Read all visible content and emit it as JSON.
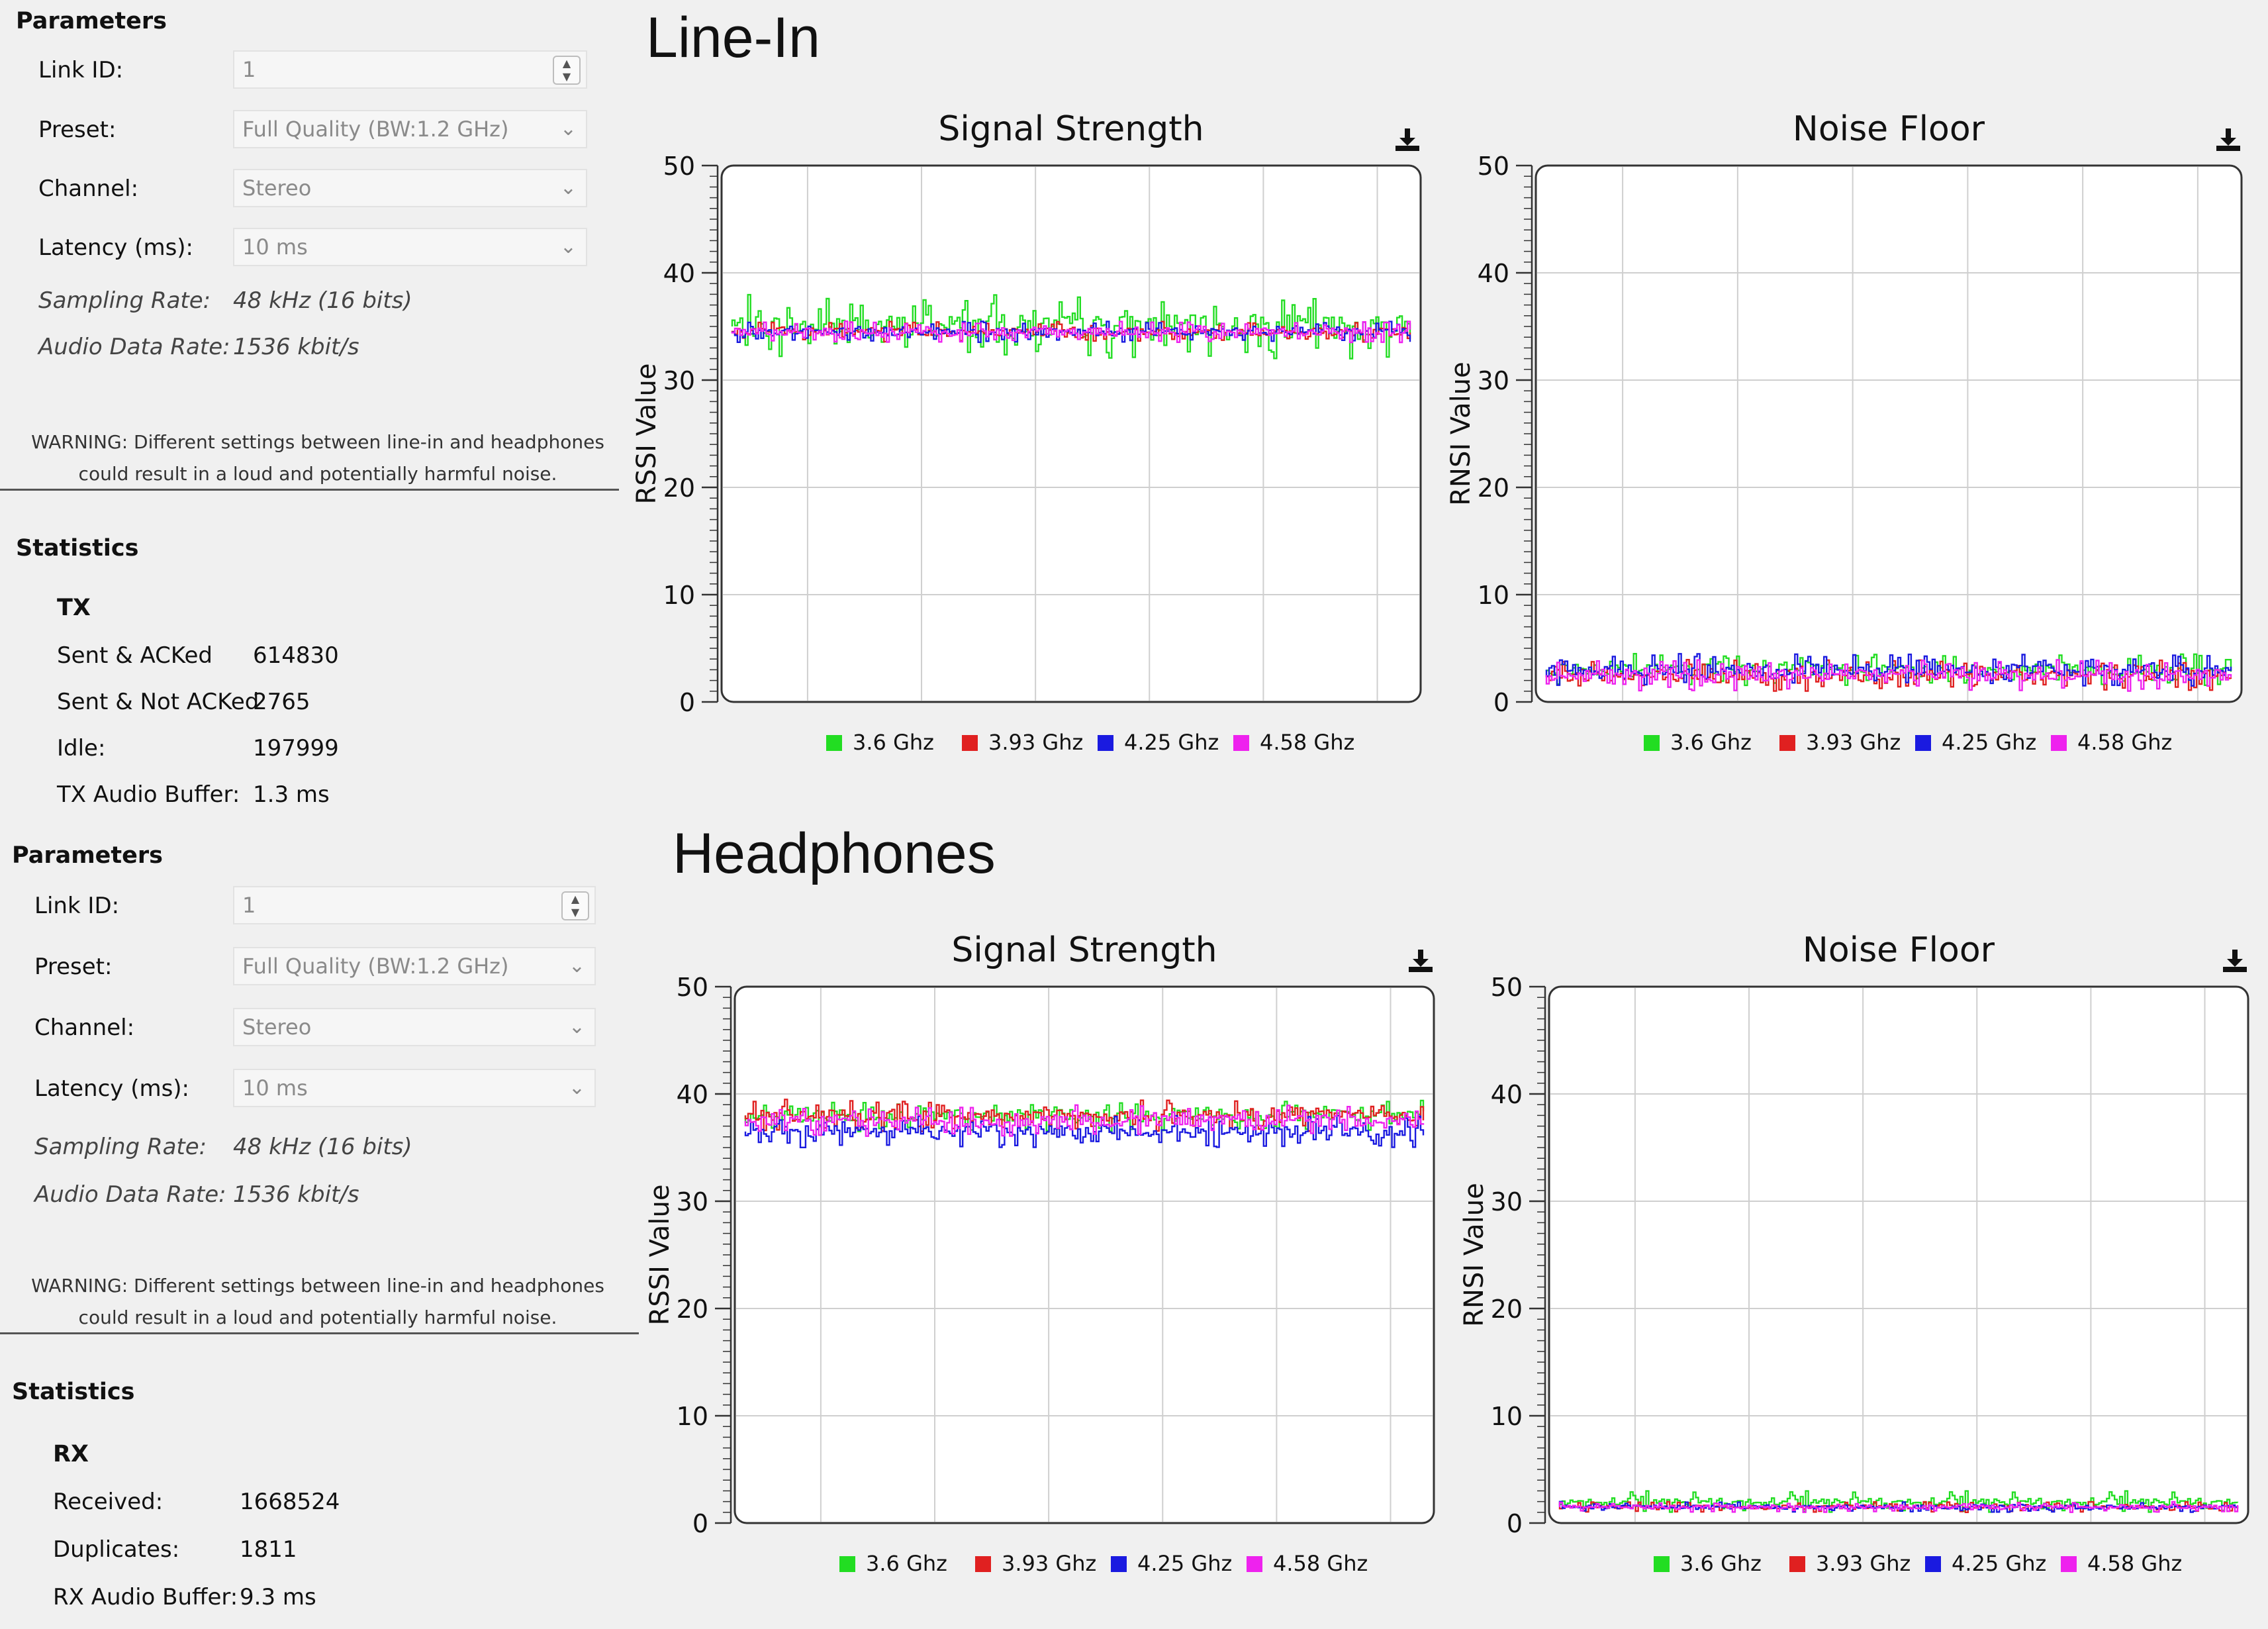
{
  "panels": [
    {
      "title": "Line-In",
      "parameters": {
        "header": "Parameters",
        "link_id_label": "Link ID:",
        "link_id_value": "1",
        "preset_label": "Preset:",
        "preset_value": "Full Quality (BW:1.2 GHz)",
        "channel_label": "Channel:",
        "channel_value": "Stereo",
        "latency_label": "Latency (ms):",
        "latency_value": "10 ms",
        "sampling_rate_label": "Sampling Rate:",
        "sampling_rate_value": "48 kHz  (16 bits)",
        "audio_rate_label": "Audio Data Rate:",
        "audio_rate_value": "1536 kbit/s",
        "warning_line1": "WARNING: Different settings between line-in and headphones",
        "warning_line2": "could result in a loud and potentially harmful noise."
      },
      "statistics": {
        "header": "Statistics",
        "group": "TX",
        "rows": [
          {
            "label": "Sent & ACKed",
            "value": "614830"
          },
          {
            "label": "Sent & Not ACKed",
            "value": "2765"
          },
          {
            "label": "Idle:",
            "value": "197999"
          },
          {
            "label": "TX Audio Buffer:",
            "value": "1.3 ms"
          }
        ]
      },
      "charts": [
        {
          "title": "Signal Strength",
          "ylabel": "RSSI Value"
        },
        {
          "title": "Noise Floor",
          "ylabel": "RNSI Value"
        }
      ]
    },
    {
      "title": "Headphones",
      "parameters": {
        "header": "Parameters",
        "link_id_label": "Link ID:",
        "link_id_value": "1",
        "preset_label": "Preset:",
        "preset_value": "Full Quality (BW:1.2 GHz)",
        "channel_label": "Channel:",
        "channel_value": "Stereo",
        "latency_label": "Latency (ms):",
        "latency_value": "10 ms",
        "sampling_rate_label": "Sampling Rate:",
        "sampling_rate_value": "48 kHz  (16 bits)",
        "audio_rate_label": "Audio Data Rate:",
        "audio_rate_value": "1536 kbit/s",
        "warning_line1": "WARNING: Different settings between line-in and headphones",
        "warning_line2": "could result in a loud and potentially harmful noise."
      },
      "statistics": {
        "header": "Statistics",
        "group": "RX",
        "rows": [
          {
            "label": "Received:",
            "value": "1668524"
          },
          {
            "label": "Duplicates:",
            "value": "1811"
          },
          {
            "label": "RX Audio Buffer:",
            "value": "9.3 ms"
          }
        ]
      },
      "charts": [
        {
          "title": "Signal Strength",
          "ylabel": "RSSI Value"
        },
        {
          "title": "Noise Floor",
          "ylabel": "RNSI Value"
        }
      ]
    }
  ],
  "chart_data": [
    {
      "type": "line",
      "panel": "Line-In",
      "title": "Signal Strength",
      "ylabel": "RSSI Value",
      "xlabel": "",
      "ylim": [
        0,
        50
      ],
      "yticks": [
        0,
        10,
        20,
        30,
        40,
        50
      ],
      "grid": true,
      "legend": "bottom",
      "series": [
        {
          "name": "3.6 Ghz",
          "color": "#22dd22",
          "baseline": 35,
          "spread": 3
        },
        {
          "name": "3.93 Ghz",
          "color": "#e02020",
          "baseline": 34.5,
          "spread": 1
        },
        {
          "name": "4.25 Ghz",
          "color": "#1a1ae0",
          "baseline": 34.5,
          "spread": 1
        },
        {
          "name": "4.58 Ghz",
          "color": "#ee22ee",
          "baseline": 34.5,
          "spread": 1
        }
      ]
    },
    {
      "type": "line",
      "panel": "Line-In",
      "title": "Noise Floor",
      "ylabel": "RNSI Value",
      "xlabel": "",
      "ylim": [
        0,
        50
      ],
      "yticks": [
        0,
        10,
        20,
        30,
        40,
        50
      ],
      "grid": true,
      "legend": "bottom",
      "series": [
        {
          "name": "3.6 Ghz",
          "color": "#22dd22",
          "baseline": 3,
          "spread": 1.5
        },
        {
          "name": "3.93 Ghz",
          "color": "#e02020",
          "baseline": 2.5,
          "spread": 1.5
        },
        {
          "name": "4.25 Ghz",
          "color": "#1a1ae0",
          "baseline": 3,
          "spread": 1.5
        },
        {
          "name": "4.58 Ghz",
          "color": "#ee22ee",
          "baseline": 2.5,
          "spread": 1.5
        }
      ]
    },
    {
      "type": "line",
      "panel": "Headphones",
      "title": "Signal Strength",
      "ylabel": "RSSI Value",
      "xlabel": "",
      "ylim": [
        0,
        50
      ],
      "yticks": [
        0,
        10,
        20,
        30,
        40,
        50
      ],
      "grid": true,
      "legend": "bottom",
      "series": [
        {
          "name": "3.6 Ghz",
          "color": "#22dd22",
          "baseline": 38,
          "spread": 1.5
        },
        {
          "name": "3.93 Ghz",
          "color": "#e02020",
          "baseline": 38,
          "spread": 1.5
        },
        {
          "name": "4.25 Ghz",
          "color": "#1a1ae0",
          "baseline": 36.5,
          "spread": 1.5
        },
        {
          "name": "4.58 Ghz",
          "color": "#ee22ee",
          "baseline": 37.5,
          "spread": 1.5
        }
      ]
    },
    {
      "type": "line",
      "panel": "Headphones",
      "title": "Noise Floor",
      "ylabel": "RNSI Value",
      "xlabel": "",
      "ylim": [
        0,
        50
      ],
      "yticks": [
        0,
        10,
        20,
        30,
        40,
        50
      ],
      "grid": true,
      "legend": "bottom",
      "series": [
        {
          "name": "3.6 Ghz",
          "color": "#22dd22",
          "baseline": 2,
          "spread": 1
        },
        {
          "name": "3.93 Ghz",
          "color": "#e02020",
          "baseline": 1.5,
          "spread": 0.5
        },
        {
          "name": "4.25 Ghz",
          "color": "#1a1ae0",
          "baseline": 1.5,
          "spread": 0.5
        },
        {
          "name": "4.58 Ghz",
          "color": "#ee22ee",
          "baseline": 1.5,
          "spread": 0.5
        }
      ]
    }
  ]
}
